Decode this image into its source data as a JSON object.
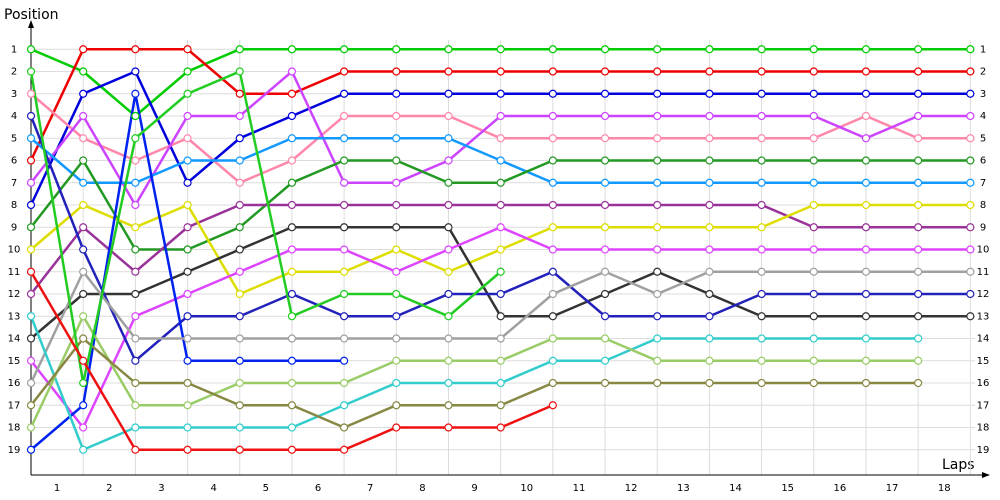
{
  "chart_data": {
    "type": "line",
    "y_label": "Position",
    "x_label": "Laps",
    "x": [
      0,
      1,
      2,
      3,
      4,
      5,
      6,
      7,
      8,
      9,
      10,
      11,
      12,
      13,
      14,
      15,
      16,
      17,
      18
    ],
    "xlim": [
      0,
      18.3
    ],
    "xticks": [
      {
        "value": 0.5,
        "label": "1"
      },
      {
        "value": 1.5,
        "label": "2"
      },
      {
        "value": 2.5,
        "label": "3"
      },
      {
        "value": 3.5,
        "label": "4"
      },
      {
        "value": 4.5,
        "label": "5"
      },
      {
        "value": 5.5,
        "label": "6"
      },
      {
        "value": 6.5,
        "label": "7"
      },
      {
        "value": 7.5,
        "label": "8"
      },
      {
        "value": 8.5,
        "label": "9"
      },
      {
        "value": 9.5,
        "label": "10"
      },
      {
        "value": 10.5,
        "label": "11"
      },
      {
        "value": 11.5,
        "label": "12"
      },
      {
        "value": 12.5,
        "label": "13"
      },
      {
        "value": 13.5,
        "label": "14"
      },
      {
        "value": 14.5,
        "label": "15"
      },
      {
        "value": 15.5,
        "label": "16"
      },
      {
        "value": 16.5,
        "label": "17"
      },
      {
        "value": 17.5,
        "label": "18"
      }
    ],
    "ylim": [
      0,
      20
    ],
    "y_inverted": true,
    "yticks": [
      1,
      2,
      3,
      4,
      5,
      6,
      7,
      8,
      9,
      10,
      11,
      12,
      13,
      14,
      15,
      16,
      17,
      18,
      19
    ],
    "grid": true,
    "series": [
      {
        "color": "#00cc00",
        "values": [
          1,
          2,
          4,
          2,
          1,
          1,
          1,
          1,
          1,
          1,
          1,
          1,
          1,
          1,
          1,
          1,
          1,
          1,
          1
        ]
      },
      {
        "color": "#ee0000",
        "values": [
          6,
          1,
          1,
          1,
          3,
          3,
          2,
          2,
          2,
          2,
          2,
          2,
          2,
          2,
          2,
          2,
          2,
          2,
          2
        ]
      },
      {
        "color": "#0000dd",
        "values": [
          8,
          3,
          2,
          7,
          5,
          4,
          3,
          3,
          3,
          3,
          3,
          3,
          3,
          3,
          3,
          3,
          3,
          3,
          3
        ]
      },
      {
        "color": "#ff88aa",
        "values": [
          3,
          5,
          6,
          5,
          7,
          6,
          4,
          4,
          4,
          5,
          5,
          5,
          5,
          5,
          5,
          5,
          4,
          5,
          5
        ]
      },
      {
        "color": "#cc44ff",
        "values": [
          7,
          4,
          8,
          4,
          4,
          2,
          7,
          7,
          6,
          4,
          4,
          4,
          4,
          4,
          4,
          4,
          5,
          4,
          4
        ]
      },
      {
        "color": "#1199ff",
        "values": [
          5,
          7,
          7,
          6,
          6,
          5,
          5,
          5,
          5,
          6,
          7,
          7,
          7,
          7,
          7,
          7,
          7,
          7,
          7
        ]
      },
      {
        "color": "#229922",
        "values": [
          9,
          6,
          10,
          10,
          9,
          7,
          6,
          6,
          7,
          7,
          6,
          6,
          6,
          6,
          6,
          6,
          6,
          6,
          6
        ]
      },
      {
        "color": "#993399",
        "values": [
          12,
          9,
          11,
          9,
          8,
          8,
          8,
          8,
          8,
          8,
          8,
          8,
          8,
          8,
          8,
          9,
          9,
          9,
          9
        ]
      },
      {
        "color": "#dddd00",
        "values": [
          10,
          8,
          9,
          8,
          12,
          11,
          11,
          10,
          11,
          10,
          9,
          9,
          9,
          9,
          9,
          8,
          8,
          8,
          8
        ]
      },
      {
        "color": "#333333",
        "values": [
          14,
          12,
          12,
          11,
          10,
          9,
          9,
          9,
          9,
          13,
          13,
          12,
          11,
          12,
          13,
          13,
          13,
          13,
          13
        ]
      },
      {
        "color": "#dd44ff",
        "values": [
          15,
          18,
          13,
          12,
          11,
          10,
          10,
          11,
          10,
          9,
          10,
          10,
          10,
          10,
          10,
          10,
          10,
          10,
          10
        ]
      },
      {
        "color": "#2222bb",
        "values": [
          4,
          10,
          15,
          13,
          13,
          12,
          13,
          13,
          12,
          12,
          11,
          13,
          13,
          13,
          12,
          12,
          12,
          12,
          12
        ]
      },
      {
        "color": "#0022ee",
        "values": [
          19,
          17,
          3,
          15,
          15,
          15,
          15,
          null,
          null,
          null,
          null,
          null,
          null,
          null,
          null,
          null,
          null,
          null,
          null
        ]
      },
      {
        "color": "#a0a0a0",
        "values": [
          16,
          11,
          14,
          14,
          14,
          14,
          14,
          14,
          14,
          14,
          12,
          11,
          12,
          11,
          11,
          11,
          11,
          11,
          11
        ]
      },
      {
        "color": "#33cccc",
        "values": [
          13,
          19,
          18,
          18,
          18,
          18,
          17,
          16,
          16,
          16,
          15,
          15,
          14,
          14,
          14,
          14,
          14,
          14,
          null
        ]
      },
      {
        "color": "#99cc66",
        "values": [
          18,
          13,
          17,
          17,
          16,
          16,
          16,
          15,
          15,
          15,
          14,
          14,
          15,
          15,
          15,
          15,
          15,
          15,
          null
        ]
      },
      {
        "color": "#888844",
        "values": [
          17,
          14,
          16,
          16,
          17,
          17,
          18,
          17,
          17,
          17,
          16,
          16,
          16,
          16,
          16,
          16,
          16,
          16,
          null
        ]
      },
      {
        "color": "#22cc22",
        "values": [
          2,
          16,
          5,
          3,
          2,
          13,
          12,
          12,
          13,
          11,
          null,
          null,
          null,
          null,
          null,
          null,
          null,
          null,
          null
        ]
      },
      {
        "color": "#ee1111",
        "values": [
          11,
          15,
          19,
          19,
          19,
          19,
          19,
          18,
          18,
          18,
          17,
          null,
          null,
          null,
          null,
          null,
          null,
          null,
          null
        ]
      }
    ]
  }
}
